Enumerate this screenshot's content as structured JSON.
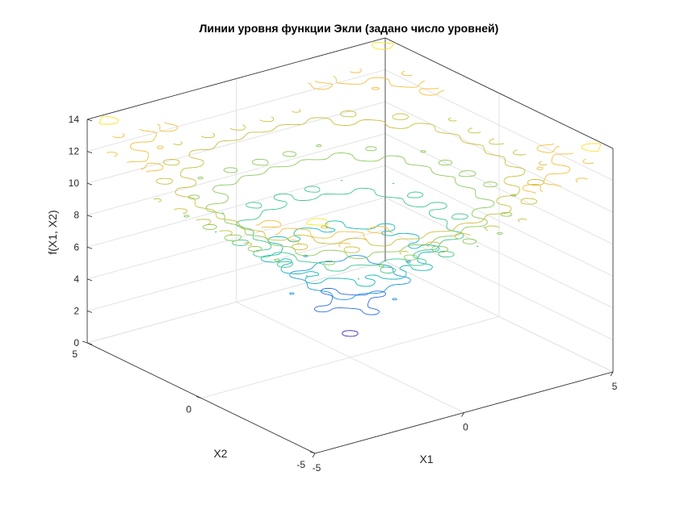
{
  "chart_data": {
    "type": "contour3",
    "title": "Линии уровня функции Экли (задано число уровней)",
    "xlabel": "X1",
    "ylabel": "X2",
    "zlabel": "f(X1, X2)",
    "x_ticks": [
      "-5",
      "0",
      "5"
    ],
    "y_ticks": [
      "-5",
      "0",
      "5"
    ],
    "z_ticks": [
      "0",
      "2",
      "4",
      "6",
      "8",
      "10",
      "12",
      "14"
    ],
    "xlim": [
      -5,
      5
    ],
    "ylim": [
      -5,
      5
    ],
    "zlim": [
      0,
      14
    ],
    "grid": true,
    "function": "ackley",
    "levels": [
      1.5,
      3.5,
      5.0,
      6.5,
      8.0,
      9.5,
      11.0,
      12.5,
      14.0
    ],
    "colormap": [
      "#3e26a8",
      "#2a6ae6",
      "#1b95db",
      "#12b5b8",
      "#3fc68b",
      "#8dc85a",
      "#c9be3b",
      "#f4bd3a",
      "#f9e51f"
    ]
  }
}
